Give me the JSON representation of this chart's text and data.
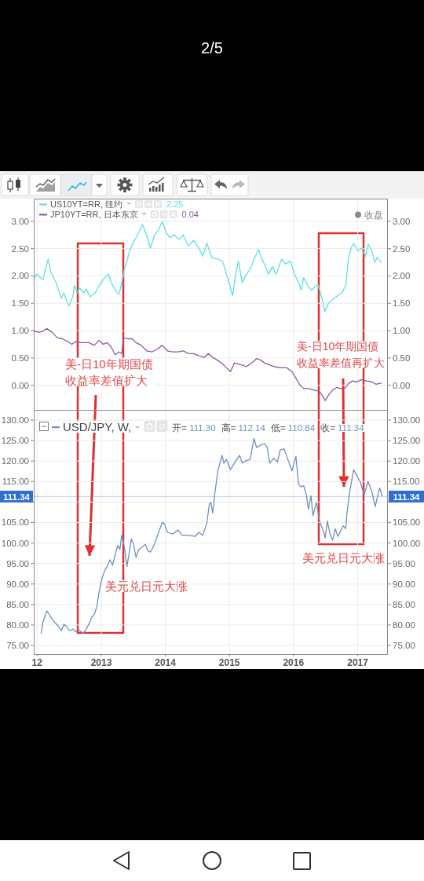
{
  "chart_data": [
    {
      "type": "line",
      "series": [
        {
          "name": "US10YT=RR, 纽约",
          "color": "#5fe0e4",
          "x": [
            "2011-12-13",
            "2011-12-28",
            "2012-02-03",
            "2012-03-04",
            "2012-03-19",
            "2012-04-18",
            "2012-05-18",
            "2012-06-02",
            "2012-06-17",
            "2012-07-02",
            "2012-07-24",
            "2012-08-01",
            "2012-08-16",
            "2012-08-31",
            "2012-09-22",
            "2012-10-07",
            "2012-10-29",
            "2012-11-28",
            "2012-12-20",
            "2013-01-20",
            "2013-02-11",
            "2013-02-26",
            "2013-03-21",
            "2013-04-12",
            "2013-04-27",
            "2013-05-12",
            "2013-05-27",
            "2013-06-11",
            "2013-06-26",
            "2013-07-18",
            "2013-08-09",
            "2013-08-24",
            "2013-09-16",
            "2013-10-08",
            "2013-10-31",
            "2013-11-22",
            "2013-12-14",
            "2014-01-06",
            "2014-01-28",
            "2014-02-20",
            "2014-03-21",
            "2014-04-13",
            "2014-05-12",
            "2014-06-11",
            "2014-07-11",
            "2014-08-02",
            "2014-08-25",
            "2014-09-24",
            "2014-10-24",
            "2014-11-23",
            "2014-12-15",
            "2014-12-30",
            "2015-01-19",
            "2015-02-06",
            "2015-02-21",
            "2015-03-15",
            "2015-04-07",
            "2015-04-29",
            "2015-05-21",
            "2015-06-17",
            "2015-07-05",
            "2015-07-27",
            "2015-08-11",
            "2015-09-03",
            "2015-09-25",
            "2015-10-25",
            "2015-11-16",
            "2015-12-16",
            "2016-01-07",
            "2016-01-30",
            "2016-02-14",
            "2016-02-28",
            "2016-03-21",
            "2016-04-13",
            "2016-05-06",
            "2016-05-21",
            "2016-06-12",
            "2016-06-27",
            "2016-07-19",
            "2016-08-11",
            "2016-09-10",
            "2016-10-03",
            "2016-10-25",
            "2016-11-09",
            "2016-11-24",
            "2016-12-09",
            "2017-01-01",
            "2017-01-23",
            "2017-02-14",
            "2017-03-01",
            "2017-03-23",
            "2017-04-08",
            "2017-04-22",
            "2017-05-15"
          ],
          "values": [
            1.93,
            2.03,
            1.93,
            2.31,
            2.07,
            1.88,
            1.59,
            1.69,
            1.54,
            1.45,
            1.64,
            1.83,
            1.69,
            1.78,
            1.69,
            1.76,
            1.62,
            1.69,
            1.83,
            1.97,
            2.03,
            1.88,
            1.74,
            1.66,
            1.88,
            2.12,
            2.27,
            2.46,
            2.58,
            2.7,
            2.84,
            2.94,
            2.75,
            2.51,
            2.75,
            2.84,
            2.99,
            2.79,
            2.7,
            2.75,
            2.67,
            2.75,
            2.55,
            2.65,
            2.51,
            2.36,
            2.6,
            2.33,
            2.31,
            2.27,
            2.03,
            1.88,
            1.64,
            2.03,
            2.27,
            1.88,
            2.03,
            2.12,
            2.31,
            2.48,
            2.31,
            2.17,
            2.03,
            2.17,
            2.03,
            2.31,
            2.22,
            2.27,
            2.03,
            1.88,
            1.74,
            1.97,
            1.83,
            1.74,
            1.81,
            1.83,
            1.59,
            1.35,
            1.5,
            1.57,
            1.64,
            1.69,
            1.83,
            2.31,
            2.51,
            2.6,
            2.46,
            2.51,
            2.36,
            2.58,
            2.46,
            2.25,
            2.34,
            2.25
          ]
        },
        {
          "name": "JP10YT=RR, 日本东京",
          "color": "#8c5a9e",
          "x": [
            "2011-12-13",
            "2012-01-12",
            "2012-02-03",
            "2012-02-25",
            "2012-03-26",
            "2012-04-25",
            "2012-05-25",
            "2012-06-24",
            "2012-07-17",
            "2012-08-08",
            "2012-09-07",
            "2012-10-22",
            "2012-11-21",
            "2012-12-20",
            "2013-01-12",
            "2013-02-04",
            "2013-02-26",
            "2013-03-21",
            "2013-04-12",
            "2013-04-27",
            "2013-05-08",
            "2013-06-04",
            "2013-06-26",
            "2013-07-18",
            "2013-08-17",
            "2013-09-16",
            "2013-10-16",
            "2013-11-15",
            "2013-12-14",
            "2014-01-13",
            "2014-02-12",
            "2014-03-14",
            "2014-04-13",
            "2014-05-12",
            "2014-06-11",
            "2014-07-11",
            "2014-08-10",
            "2014-09-02",
            "2014-09-24",
            "2014-10-24",
            "2014-11-23",
            "2014-12-15",
            "2015-01-07",
            "2015-01-29",
            "2015-02-21",
            "2015-03-15",
            "2015-04-07",
            "2015-04-29",
            "2015-05-21",
            "2015-06-05",
            "2015-06-28",
            "2015-07-20",
            "2015-08-19",
            "2015-09-17",
            "2015-10-17",
            "2015-11-24",
            "2015-12-23",
            "2016-01-15",
            "2016-02-06",
            "2016-02-28",
            "2016-03-29",
            "2016-04-28",
            "2016-05-28",
            "2016-06-12",
            "2016-06-30",
            "2016-07-19",
            "2016-08-11",
            "2016-09-03",
            "2016-09-25",
            "2016-10-18",
            "2016-11-09",
            "2016-12-02",
            "2016-12-24",
            "2017-01-23",
            "2017-02-22",
            "2017-03-23",
            "2017-04-15",
            "2017-05-15"
          ],
          "values": [
            0.99,
            0.97,
            0.99,
            1.04,
            0.97,
            0.87,
            0.85,
            0.8,
            0.75,
            0.8,
            0.78,
            0.78,
            0.73,
            0.82,
            0.75,
            0.78,
            0.7,
            0.56,
            0.61,
            0.58,
            0.87,
            0.85,
            0.85,
            0.78,
            0.73,
            0.63,
            0.61,
            0.66,
            0.73,
            0.63,
            0.61,
            0.61,
            0.63,
            0.58,
            0.58,
            0.54,
            0.51,
            0.58,
            0.52,
            0.46,
            0.39,
            0.32,
            0.25,
            0.41,
            0.39,
            0.37,
            0.34,
            0.39,
            0.44,
            0.49,
            0.46,
            0.41,
            0.37,
            0.34,
            0.32,
            0.32,
            0.25,
            0.13,
            0.01,
            -0.06,
            -0.06,
            -0.09,
            -0.11,
            -0.18,
            -0.28,
            -0.18,
            -0.09,
            -0.04,
            -0.06,
            -0.06,
            0.03,
            0.08,
            0.06,
            0.1,
            0.08,
            0.06,
            0.02,
            0.04
          ]
        }
      ],
      "xlim": [
        "2011-12-13",
        "2017-06-22"
      ],
      "xticks": [
        "2012",
        "2013",
        "2014",
        "2015",
        "2016",
        "2017"
      ],
      "ylim": [
        -0.45,
        3.4
      ],
      "yticks": [
        {
          "value": 0,
          "label": "0.00"
        },
        {
          "value": 0.5,
          "label": "0.50"
        },
        {
          "value": 1,
          "label": "1.00"
        },
        {
          "value": 1.5,
          "label": "1.50"
        },
        {
          "value": 2,
          "label": "2.00"
        },
        {
          "value": 2.5,
          "label": "2.50"
        },
        {
          "value": 3,
          "label": "3.00"
        }
      ],
      "y2lim": [
        -0.45,
        3.4
      ],
      "y2ticks": [
        {
          "value": 0,
          "label": "0.00"
        },
        {
          "value": 0.5,
          "label": "0.50"
        },
        {
          "value": 1,
          "label": "1.00"
        },
        {
          "value": 1.5,
          "label": "1.50"
        },
        {
          "value": 2,
          "label": "2.00"
        },
        {
          "value": 2.5,
          "label": "2.50"
        },
        {
          "value": 3,
          "label": "3.00"
        }
      ],
      "tick_labels": "y",
      "grid": true,
      "legend": "top left",
      "annotations": [
        "2/5",
        "2.25",
        "0.04",
        "收盘",
        "美-日10年期国债收益率差值扩大",
        "美-日10年期国债收益率差值再扩大"
      ]
    },
    {
      "type": "line",
      "series": [
        {
          "name": "USD/JPY, W,",
          "color": "#6f8fbf",
          "x": [
            "2012-01-24",
            "2012-02-03",
            "2012-02-25",
            "2012-03-12",
            "2012-03-26",
            "2012-04-11",
            "2012-05-04",
            "2012-05-18",
            "2012-06-02",
            "2012-06-17",
            "2012-07-02",
            "2012-07-24",
            "2012-08-08",
            "2012-08-23",
            "2012-09-07",
            "2012-09-22",
            "2012-10-07",
            "2012-10-22",
            "2012-11-06",
            "2012-11-21",
            "2012-12-06",
            "2012-12-20",
            "2013-01-05",
            "2013-01-20",
            "2013-02-04",
            "2013-02-19",
            "2013-03-06",
            "2013-03-21",
            "2013-04-05",
            "2013-04-17",
            "2013-04-27",
            "2013-05-12",
            "2013-05-27",
            "2013-06-11",
            "2013-06-21",
            "2013-07-03",
            "2013-07-18",
            "2013-08-02",
            "2013-08-24",
            "2013-09-09",
            "2013-09-23",
            "2013-10-08",
            "2013-10-31",
            "2013-11-15",
            "2013-11-29",
            "2013-12-14",
            "2013-12-29",
            "2014-01-13",
            "2014-02-12",
            "2014-03-14",
            "2014-04-06",
            "2014-05-12",
            "2014-06-19",
            "2014-07-11",
            "2014-08-02",
            "2014-08-25",
            "2014-09-09",
            "2014-09-17",
            "2014-09-28",
            "2014-10-09",
            "2014-10-27",
            "2014-11-20",
            "2014-11-30",
            "2014-12-15",
            "2015-01-07",
            "2015-01-29",
            "2015-02-28",
            "2015-03-15",
            "2015-04-07",
            "2015-04-29",
            "2015-05-21",
            "2015-06-05",
            "2015-06-28",
            "2015-07-20",
            "2015-08-04",
            "2015-08-19",
            "2015-09-10",
            "2015-10-02",
            "2015-10-17",
            "2015-11-08",
            "2015-11-30",
            "2015-12-23",
            "2016-01-15",
            "2016-01-30",
            "2016-02-14",
            "2016-02-28",
            "2016-03-14",
            "2016-03-26",
            "2016-04-10",
            "2016-04-21",
            "2016-05-11",
            "2016-05-28",
            "2016-06-20",
            "2016-06-30",
            "2016-07-12",
            "2016-07-27",
            "2016-08-11",
            "2016-08-26",
            "2016-09-10",
            "2016-09-25",
            "2016-10-11",
            "2016-10-25",
            "2016-11-01",
            "2016-11-16",
            "2016-12-09",
            "2017-01-01",
            "2017-01-15",
            "2017-02-07",
            "2017-03-01",
            "2017-03-23",
            "2017-04-11",
            "2017-04-30",
            "2017-05-07",
            "2017-05-20"
          ],
          "values": [
            78.0,
            80.6,
            83.4,
            82.5,
            81.5,
            80.6,
            79.6,
            78.6,
            80.2,
            79.6,
            78.6,
            79.0,
            78.3,
            79.0,
            78.3,
            78.0,
            79.0,
            80.2,
            81.8,
            82.5,
            84.4,
            88.2,
            91.4,
            93.3,
            94.3,
            95.9,
            94.6,
            97.1,
            99.4,
            98.4,
            101.9,
            99.1,
            94.3,
            98.1,
            101.0,
            99.7,
            96.5,
            98.4,
            99.1,
            99.7,
            98.1,
            97.8,
            99.7,
            101.6,
            103.2,
            105.1,
            104.5,
            102.6,
            102.2,
            103.2,
            101.9,
            101.9,
            101.6,
            102.6,
            101.9,
            104.8,
            109.6,
            109.9,
            107.3,
            111.8,
            117.6,
            121.4,
            119.5,
            120.4,
            117.9,
            119.5,
            121.4,
            119.5,
            120.1,
            120.4,
            125.5,
            123.3,
            123.9,
            124.3,
            123.3,
            119.5,
            120.7,
            119.8,
            122.7,
            123.0,
            120.4,
            117.6,
            121.1,
            114.4,
            113.7,
            114.0,
            111.8,
            108.3,
            111.5,
            106.7,
            109.9,
            105.4,
            102.9,
            101.3,
            105.4,
            102.2,
            100.7,
            103.5,
            101.6,
            102.9,
            104.2,
            103.5,
            107.3,
            112.5,
            117.9,
            116.0,
            115.0,
            111.8,
            115.0,
            112.5,
            108.9,
            112.5,
            113.4,
            111.5
          ]
        }
      ],
      "xlim": [
        "2011-12-13",
        "2017-06-22"
      ],
      "xticks": [
        {
          "value": "2012",
          "label": "12"
        },
        "2013",
        "2014",
        "2015",
        "2016",
        "2017"
      ],
      "ylim": [
        72.9,
        132.3
      ],
      "yticks": [
        {
          "value": 75,
          "label": "75.00"
        },
        {
          "value": 80,
          "label": "80.00"
        },
        {
          "value": 85,
          "label": "85.00"
        },
        {
          "value": 90,
          "label": "90.00"
        },
        {
          "value": 95,
          "label": "95.00"
        },
        {
          "value": 100,
          "label": "100.00"
        },
        {
          "value": 105,
          "label": "105.00"
        },
        {
          "value": 110,
          "label": null
        },
        {
          "value": 115,
          "label": "115.00"
        },
        {
          "value": 120,
          "label": "120.00"
        },
        {
          "value": 125,
          "label": "125.00"
        },
        {
          "value": 130,
          "label": "130.00"
        }
      ],
      "y2lim": [
        72.9,
        132.3
      ],
      "y2ticks": [
        {
          "value": 75,
          "label": "75.00"
        },
        {
          "value": 80,
          "label": "80.00"
        },
        {
          "value": 85,
          "label": "85.00"
        },
        {
          "value": 90,
          "label": "90.00"
        },
        {
          "value": 95,
          "label": "95.00"
        },
        {
          "value": 100,
          "label": "100.00"
        },
        {
          "value": 105,
          "label": "105.00"
        },
        {
          "value": 110,
          "label": null
        },
        {
          "value": 115,
          "label": "115.00"
        },
        {
          "value": 120,
          "label": "120.00"
        },
        {
          "value": 125,
          "label": "125.00"
        },
        {
          "value": 130,
          "label": "130.00"
        }
      ],
      "ref_lines": [
        {
          "axis": "y",
          "value": 111.34,
          "label": "111.34",
          "color": "#2f6fd1"
        }
      ],
      "grid": true,
      "legend": "top left",
      "annotations": [
        "开= 111.30",
        "高= 112.14",
        "低= 110.84",
        "收= 111.34",
        "美元兑日元大涨",
        "美元兑日元大涨"
      ]
    }
  ]
}
